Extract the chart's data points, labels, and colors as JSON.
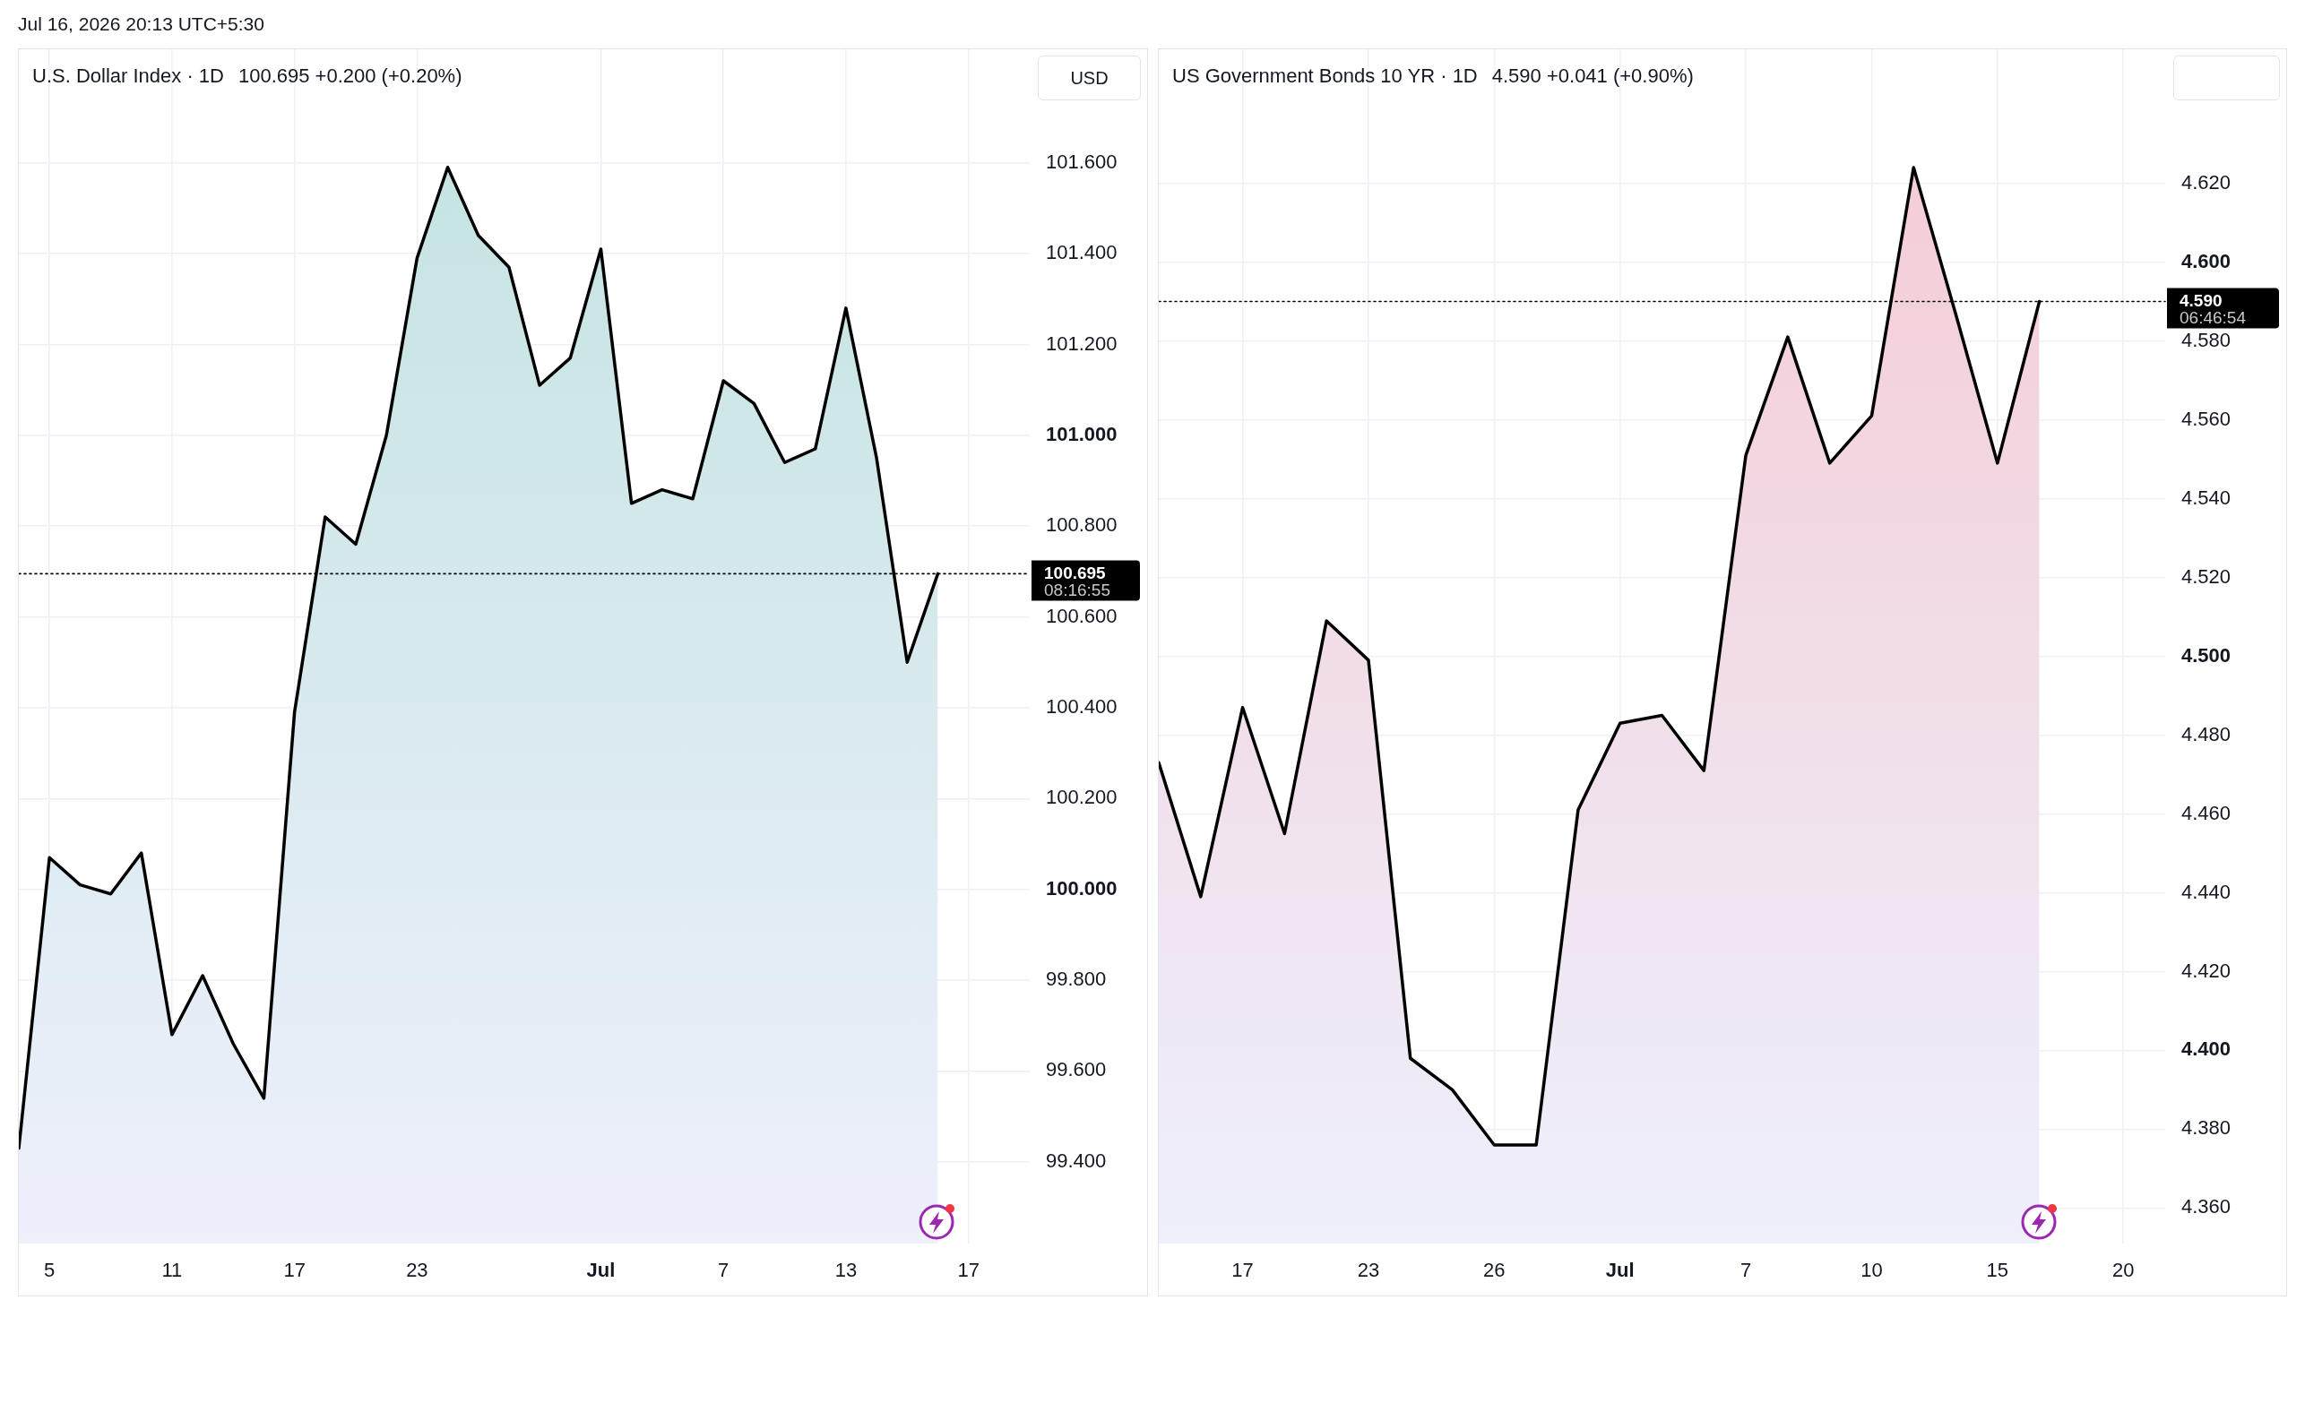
{
  "chart_data": [
    {
      "type": "area",
      "title": "U.S. Dollar Index · 1D",
      "subtitle": "100.695 +0.200 (+0.20%)",
      "ylabel": "USD",
      "categories": [
        null,
        "5",
        null,
        null,
        null,
        "11",
        null,
        null,
        null,
        "17",
        null,
        null,
        null,
        "23",
        null,
        null,
        null,
        null,
        null,
        "Jul",
        null,
        null,
        null,
        "7",
        null,
        null,
        null,
        "13",
        null,
        null,
        null,
        "17",
        null,
        null
      ],
      "values": [
        99.43,
        100.07,
        100.01,
        99.99,
        100.08,
        99.68,
        99.81,
        99.66,
        99.54,
        100.39,
        100.82,
        100.76,
        101.0,
        101.39,
        101.59,
        101.44,
        101.37,
        101.11,
        101.17,
        101.41,
        100.85,
        100.88,
        100.86,
        101.12,
        101.07,
        100.94,
        100.97,
        101.28,
        100.95,
        100.5,
        100.695,
        null,
        null,
        null
      ],
      "color": "#c5e4e1",
      "ylim": [
        99.22,
        101.85
      ],
      "yticks": [
        {
          "value": 99.4,
          "label": "99.400"
        },
        {
          "value": 99.6,
          "label": "99.600"
        },
        {
          "value": 99.8,
          "label": "99.800"
        },
        {
          "value": 100,
          "label": "100.000"
        },
        {
          "value": 100.2,
          "label": "100.200"
        },
        {
          "value": 100.4,
          "label": "100.400"
        },
        {
          "value": 100.6,
          "label": "100.600"
        },
        {
          "value": 100.8,
          "label": "100.800"
        },
        {
          "value": 101,
          "label": "101.000"
        },
        {
          "value": 101.2,
          "label": "101.200"
        },
        {
          "value": 101.4,
          "label": "101.400"
        },
        {
          "value": 101.6,
          "label": "101.600"
        }
      ],
      "grid": true,
      "ref_lines": [
        {
          "axis": "y",
          "value": 100.695,
          "label": "100.695\n08:16:55",
          "color": "#000000",
          "line_style": "dotted"
        }
      ],
      "annotations": [
        "Jul 16, 2026 20:13 UTC+5:30"
      ]
    },
    {
      "type": "area",
      "title": "US Government Bonds 10 YR · 1D",
      "subtitle": "4.590 +0.041 (+0.90%)",
      "categories": [
        null,
        null,
        "17",
        null,
        null,
        "23",
        null,
        null,
        "26",
        null,
        null,
        "Jul",
        null,
        null,
        "7",
        null,
        null,
        "10",
        null,
        null,
        "15",
        null,
        null,
        "20",
        null
      ],
      "values": [
        4.473,
        4.439,
        4.487,
        4.455,
        4.509,
        4.499,
        4.398,
        4.39,
        4.376,
        4.376,
        4.461,
        4.483,
        4.485,
        4.471,
        4.551,
        4.581,
        4.549,
        4.561,
        4.624,
        4.587,
        4.549,
        4.59,
        null,
        null,
        null
      ],
      "color": "#f4cdd7",
      "ylim": [
        4.351,
        4.654
      ],
      "yticks": [
        {
          "value": 4.36,
          "label": "4.360"
        },
        {
          "value": 4.38,
          "label": "4.380"
        },
        {
          "value": 4.4,
          "label": "4.400"
        },
        {
          "value": 4.42,
          "label": "4.420"
        },
        {
          "value": 4.44,
          "label": "4.440"
        },
        {
          "value": 4.46,
          "label": "4.460"
        },
        {
          "value": 4.48,
          "label": "4.480"
        },
        {
          "value": 4.5,
          "label": "4.500"
        },
        {
          "value": 4.52,
          "label": "4.520"
        },
        {
          "value": 4.54,
          "label": "4.540"
        },
        {
          "value": 4.56,
          "label": "4.560"
        },
        {
          "value": 4.58,
          "label": "4.580"
        },
        {
          "value": 4.6,
          "label": "4.600"
        },
        {
          "value": 4.62,
          "label": "4.620"
        }
      ],
      "grid": true,
      "ref_lines": [
        {
          "axis": "y",
          "value": 4.59,
          "label": "4.590\n06:46:54",
          "color": "#000000",
          "line_style": "dotted"
        }
      ]
    }
  ]
}
